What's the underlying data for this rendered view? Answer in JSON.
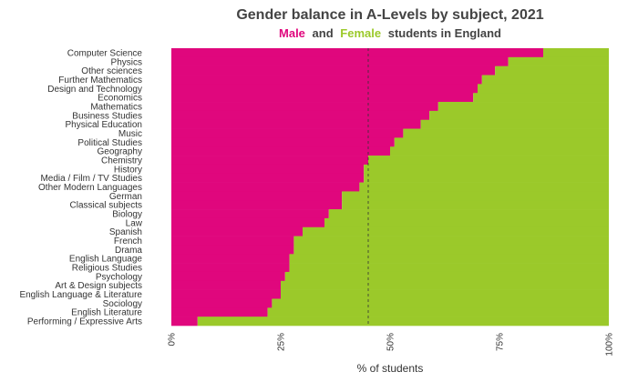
{
  "chart_data": {
    "type": "bar",
    "orientation": "horizontal",
    "stacked": true,
    "title": "Gender balance in A-Levels by subject, 2021",
    "subtitle": {
      "male_word": "Male",
      "and_word": "and",
      "female_word": "Female",
      "rest": "students in England"
    },
    "xlabel": "% of students",
    "xlim": [
      0,
      100
    ],
    "ticks": [
      {
        "value": 0,
        "label": "0%"
      },
      {
        "value": 25,
        "label": "25%"
      },
      {
        "value": 50,
        "label": "50%"
      },
      {
        "value": 75,
        "label": "75%"
      },
      {
        "value": 100,
        "label": "100%"
      }
    ],
    "reference_line": 45,
    "colors": {
      "male": "#e0077d",
      "female": "#9bc92a"
    },
    "categories": [
      "Computer Science",
      "Physics",
      "Other sciences",
      "Further Mathematics",
      "Design and Technology",
      "Economics",
      "Mathematics",
      "Business Studies",
      "Physical Education",
      "Music",
      "Political Studies",
      "Geography",
      "Chemistry",
      "History",
      "Media / Film / TV Studies",
      "Other Modern Languages",
      "German",
      "Classical subjects",
      "Biology",
      "Law",
      "Spanish",
      "French",
      "Drama",
      "English Language",
      "Religious Studies",
      "Psychology",
      "Art & Design subjects",
      "English Language & Literature",
      "Sociology",
      "English Literature",
      "Performing / Expressive Arts"
    ],
    "series": [
      {
        "name": "Male",
        "values": [
          85,
          77,
          74,
          71,
          70,
          69,
          61,
          59,
          57,
          53,
          51,
          50,
          45,
          44,
          44,
          43,
          39,
          39,
          36,
          35,
          30,
          28,
          28,
          27,
          27,
          26,
          25,
          25,
          23,
          22,
          6
        ]
      },
      {
        "name": "Female",
        "values": [
          15,
          23,
          26,
          29,
          30,
          31,
          39,
          41,
          43,
          47,
          49,
          50,
          55,
          56,
          56,
          57,
          61,
          61,
          64,
          65,
          70,
          72,
          72,
          73,
          73,
          74,
          75,
          75,
          77,
          78,
          94
        ]
      }
    ]
  }
}
